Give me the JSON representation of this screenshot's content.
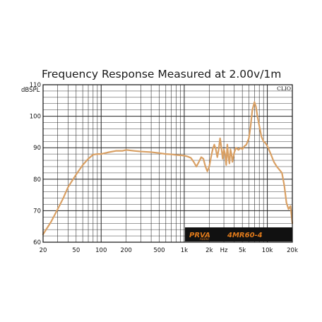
{
  "chart_data": {
    "type": "line",
    "title": "Frequency Response Measured at 2.00v/1m",
    "ylabel": "dBSPL",
    "xlabel": "",
    "x_unit": "Hz",
    "x_scale": "log",
    "xlim": [
      20,
      20000
    ],
    "ylim": [
      60,
      110
    ],
    "y_ticks": [
      60,
      70,
      80,
      90,
      100,
      110
    ],
    "x_ticks": [
      {
        "value": 20,
        "label": "20"
      },
      {
        "value": 50,
        "label": "50"
      },
      {
        "value": 100,
        "label": "100"
      },
      {
        "value": 200,
        "label": "200"
      },
      {
        "value": 500,
        "label": "500"
      },
      {
        "value": 1000,
        "label": "1k"
      },
      {
        "value": 2000,
        "label": "2k"
      },
      {
        "value": 5000,
        "label": "5k"
      },
      {
        "value": 10000,
        "label": "10k"
      },
      {
        "value": 20000,
        "label": "20k"
      }
    ],
    "grid": true,
    "watermark": "CLIO",
    "series": [
      {
        "color": "#d9a064",
        "x": [
          20,
          25,
          30,
          35,
          40,
          50,
          60,
          70,
          80,
          90,
          100,
          120,
          150,
          180,
          200,
          250,
          300,
          400,
          500,
          600,
          700,
          800,
          900,
          1000,
          1100,
          1200,
          1300,
          1400,
          1500,
          1600,
          1700,
          1800,
          1900,
          2000,
          2100,
          2200,
          2300,
          2400,
          2500,
          2600,
          2700,
          2800,
          2900,
          3000,
          3100,
          3200,
          3300,
          3400,
          3500,
          3600,
          3700,
          3800,
          4000,
          4200,
          4500,
          4800,
          5000,
          5300,
          5600,
          6000,
          6300,
          6600,
          7000,
          7300,
          7600,
          8000,
          8500,
          9000,
          9500,
          10000,
          11000,
          12000,
          13000,
          14000,
          15000,
          16000,
          17000,
          18000,
          19000,
          20000
        ],
        "y": [
          62.5,
          66.5,
          70.5,
          74,
          77.5,
          81.5,
          84.5,
          86.5,
          87.8,
          88,
          88,
          88.5,
          89,
          89,
          89.3,
          89,
          88.8,
          88.6,
          88.3,
          88,
          87.9,
          87.7,
          87.6,
          87.5,
          87.2,
          86.8,
          85.5,
          84,
          85.5,
          87,
          86.5,
          84,
          82.5,
          84,
          87,
          89.5,
          91,
          89.5,
          87,
          89.5,
          93,
          90,
          86.5,
          89.5,
          88,
          84.5,
          91,
          87,
          85,
          89.5,
          88,
          85.5,
          88.5,
          90,
          89.3,
          90,
          89.5,
          90.5,
          91,
          93,
          97,
          102,
          104.5,
          103,
          100,
          97,
          93.5,
          92,
          91.5,
          90.5,
          88,
          85.5,
          84,
          83,
          82,
          78,
          72.5,
          70.5,
          71.5,
          66
        ]
      }
    ]
  },
  "branding": {
    "logo_text": "PRVA",
    "logo_sub": "AUDIO",
    "model": "4MR60-4",
    "box_color": "#111111",
    "accent_color": "#e07a1a"
  }
}
